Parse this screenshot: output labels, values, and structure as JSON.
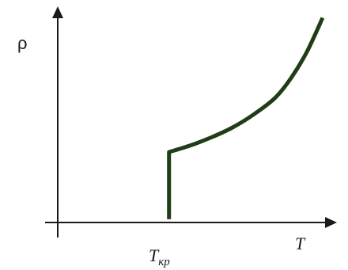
{
  "chart_data": {
    "type": "line",
    "xlabel": "T",
    "ylabel": "ρ",
    "xticks": [
      {
        "main": "T",
        "sub": "кр"
      }
    ],
    "grid": false,
    "series": [
      {
        "color": "#1f3d16",
        "points": [
          [
            1.0,
            0.0
          ],
          [
            1.0,
            0.41
          ],
          [
            1.2,
            0.45
          ],
          [
            1.4,
            0.5
          ],
          [
            1.6,
            0.56
          ],
          [
            1.8,
            0.64
          ],
          [
            2.0,
            0.74
          ],
          [
            2.15,
            0.86
          ],
          [
            2.3,
            1.02
          ],
          [
            2.45,
            1.23
          ]
        ]
      }
    ],
    "xlim": [
      -0.05,
      2.6
    ],
    "ylim": [
      -0.02,
      1.3
    ]
  },
  "colors": {
    "axis": "#1a1a1a",
    "curve": "#1f3d16"
  }
}
